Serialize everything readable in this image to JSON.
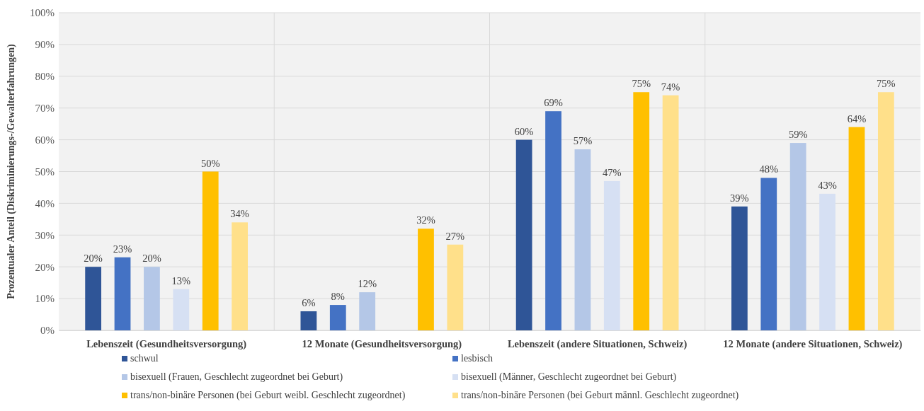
{
  "chart_data": {
    "type": "bar",
    "ylabel": "Prozentualer Anteil (Diskriminierungs-/Gewalterfahrungen)",
    "categories": [
      "Lebenszeit (Gesundheitsversorgung)",
      "12 Monate (Gesundheitsversorgung)",
      "Lebenszeit (andere Situationen, Schweiz)",
      "12 Monate (andere Situationen, Schweiz)"
    ],
    "series": [
      {
        "name": "schwul",
        "color": "#2f5597",
        "values": [
          20,
          6,
          60,
          39
        ],
        "value_labels": [
          "20%",
          "6%",
          "60%",
          "39%"
        ]
      },
      {
        "name": "lesbisch",
        "color": "#4472c4",
        "values": [
          23,
          8,
          69,
          48
        ],
        "value_labels": [
          "23%",
          "8%",
          "69%",
          "48%"
        ]
      },
      {
        "name": "bisexuell (Frauen, Geschlecht zugeordnet bei Geburt)",
        "color": "#b4c7e7",
        "values": [
          20,
          12,
          57,
          59
        ],
        "value_labels": [
          "20%",
          "12%",
          "57%",
          "59%"
        ]
      },
      {
        "name": "bisexuell (Männer, Geschlecht zugeordnet bei Geburt)",
        "color": "#d6e0f3",
        "values": [
          13,
          null,
          47,
          43
        ],
        "value_labels": [
          "13%",
          null,
          "47%",
          "43%"
        ]
      },
      {
        "name": "trans/non-binäre Personen (bei Geburt weibl. Geschlecht zugeordnet)",
        "color": "#ffc000",
        "values": [
          50,
          32,
          75,
          64
        ],
        "value_labels": [
          "50%",
          "32%",
          "75%",
          "64%"
        ]
      },
      {
        "name": "trans/non-binäre Personen (bei Geburt männl. Geschlecht zugeordnet)",
        "color": "#ffe08a",
        "values": [
          34,
          27,
          74,
          75
        ],
        "value_labels": [
          "34%",
          "27%",
          "74%",
          "75%"
        ]
      }
    ],
    "ylim": [
      0,
      100
    ],
    "yticks": [
      {
        "value": 0,
        "label": "0%"
      },
      {
        "value": 10,
        "label": "10%"
      },
      {
        "value": 20,
        "label": "20%"
      },
      {
        "value": 30,
        "label": "30%"
      },
      {
        "value": 40,
        "label": "40%"
      },
      {
        "value": 50,
        "label": "50%"
      },
      {
        "value": 60,
        "label": "60%"
      },
      {
        "value": 70,
        "label": "70%"
      },
      {
        "value": 80,
        "label": "80%"
      },
      {
        "value": 90,
        "label": "90%"
      },
      {
        "value": 100,
        "label": "100%"
      }
    ],
    "grid": true,
    "legend": "bottom"
  }
}
